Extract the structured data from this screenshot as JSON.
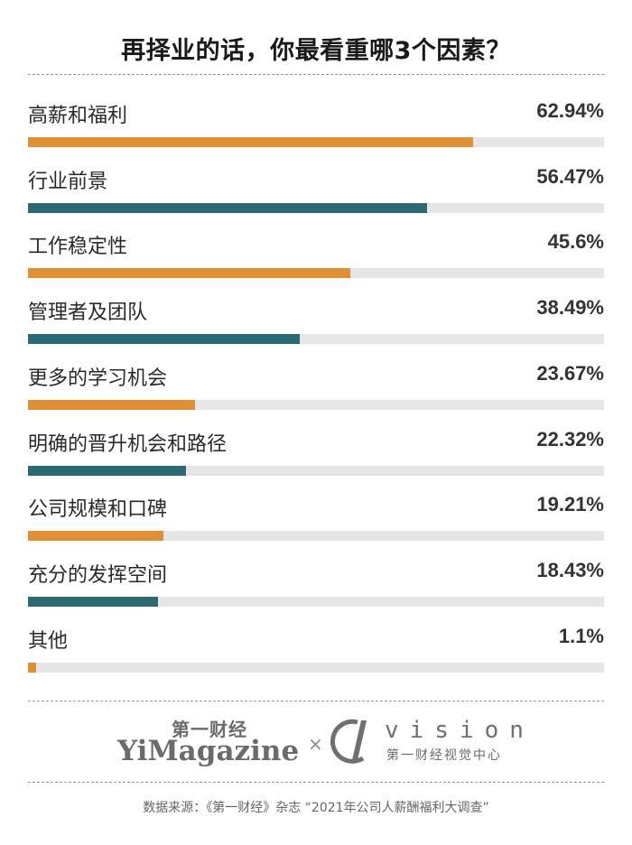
{
  "title": "再择业的话，你最看重哪3个因素？",
  "chart_data": {
    "type": "bar",
    "orientation": "horizontal",
    "categories": [
      "高薪和福利",
      "行业前景",
      "工作稳定性",
      "管理者及团队",
      "更多的学习机会",
      "明确的晋升机会和路径",
      "公司规模和口碑",
      "充分的发挥空间",
      "其他"
    ],
    "values": [
      62.94,
      56.47,
      45.6,
      38.49,
      23.67,
      22.32,
      19.21,
      18.43,
      1.1
    ],
    "value_labels": [
      "62.94%",
      "56.47%",
      "45.6%",
      "38.49%",
      "23.67%",
      "22.32%",
      "19.21%",
      "18.43%",
      "1.1%"
    ],
    "xlim": [
      0,
      81.5
    ],
    "bar_colors": [
      "#e08f34",
      "#2b6a72"
    ],
    "track_color": "#e6e6e6"
  },
  "footer": {
    "yimagazine_cn": "第一财经",
    "yimagazine_en": "YiMagazine",
    "cross": "×",
    "vision_word": "vision",
    "vision_sub": "第一财经视觉中心",
    "source": "数据来源：《第一财经》杂志 “2021年公司人薪酬福利大调查”"
  }
}
